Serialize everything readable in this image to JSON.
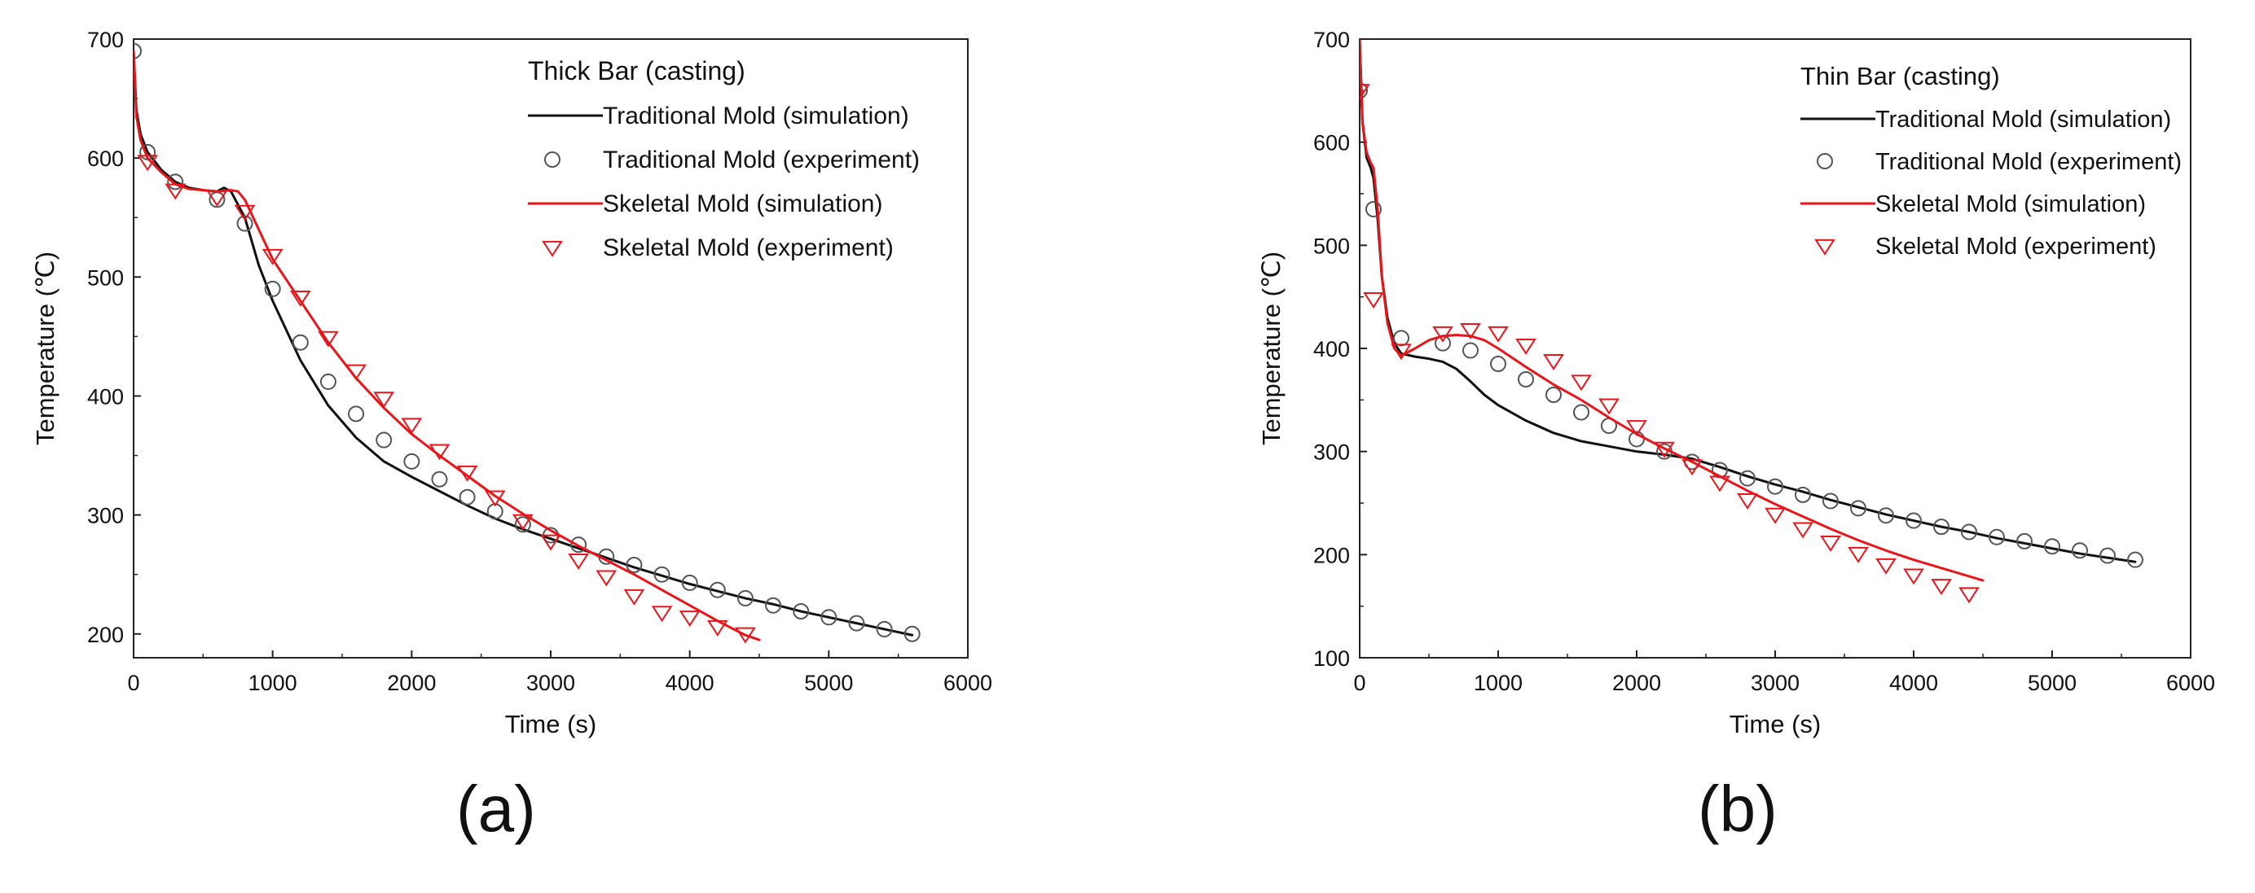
{
  "chart_data": [
    {
      "type": "line",
      "panel_label": "(a)",
      "title": "Thick Bar (casting)",
      "xlabel": "Time (s)",
      "ylabel": "Temperature (℃)",
      "xlim": [
        0,
        6000
      ],
      "ylim": [
        180,
        700
      ],
      "xticks": [
        0,
        1000,
        2000,
        3000,
        4000,
        5000,
        6000
      ],
      "yticks": [
        200,
        300,
        400,
        500,
        600,
        700
      ],
      "grid": false,
      "legend_position": "top-right",
      "series": [
        {
          "name": "Traditional Mold (simulation)",
          "kind": "line",
          "color": "#111111",
          "x": [
            0,
            20,
            50,
            100,
            200,
            300,
            400,
            500,
            600,
            650,
            700,
            800,
            900,
            1000,
            1200,
            1400,
            1600,
            1800,
            2000,
            2200,
            2400,
            2600,
            2800,
            3000,
            3200,
            3400,
            3600,
            3800,
            4000,
            4200,
            4400,
            4600,
            4800,
            5000,
            5200,
            5400,
            5600
          ],
          "y": [
            690,
            640,
            620,
            605,
            590,
            580,
            575,
            573,
            572,
            575,
            572,
            550,
            510,
            480,
            430,
            392,
            365,
            345,
            332,
            320,
            308,
            297,
            288,
            280,
            272,
            264,
            256,
            249,
            242,
            236,
            230,
            225,
            219,
            214,
            209,
            204,
            199
          ]
        },
        {
          "name": "Traditional Mold (experiment)",
          "kind": "scatter",
          "marker": "circle",
          "color": "#555555",
          "x": [
            0,
            100,
            300,
            600,
            800,
            1000,
            1200,
            1400,
            1600,
            1800,
            2000,
            2200,
            2400,
            2600,
            2800,
            3000,
            3200,
            3400,
            3600,
            3800,
            4000,
            4200,
            4400,
            4600,
            4800,
            5000,
            5200,
            5400,
            5600
          ],
          "y": [
            690,
            605,
            580,
            565,
            545,
            490,
            445,
            412,
            385,
            363,
            345,
            330,
            315,
            303,
            292,
            283,
            275,
            265,
            258,
            250,
            243,
            237,
            230,
            224,
            219,
            214,
            209,
            204,
            200
          ]
        },
        {
          "name": "Skeletal Mold (simulation)",
          "kind": "line",
          "color": "#e8161b",
          "x": [
            0,
            20,
            50,
            100,
            200,
            300,
            400,
            500,
            600,
            700,
            750,
            800,
            900,
            1000,
            1200,
            1400,
            1600,
            1800,
            2000,
            2200,
            2400,
            2600,
            2800,
            3000,
            3200,
            3400,
            3600,
            3800,
            4000,
            4200,
            4400,
            4500
          ],
          "y": [
            690,
            635,
            615,
            600,
            588,
            578,
            574,
            573,
            572,
            573,
            572,
            565,
            540,
            515,
            480,
            445,
            415,
            390,
            368,
            350,
            333,
            316,
            301,
            287,
            274,
            262,
            250,
            237,
            224,
            211,
            199,
            195
          ]
        },
        {
          "name": "Skeletal Mold (experiment)",
          "kind": "scatter",
          "marker": "triangle-down",
          "color": "#e8161b",
          "x": [
            100,
            300,
            600,
            800,
            1000,
            1200,
            1400,
            1600,
            1800,
            2000,
            2200,
            2400,
            2600,
            2800,
            3000,
            3200,
            3400,
            3600,
            3800,
            4000,
            4200,
            4400
          ],
          "y": [
            597,
            573,
            567,
            555,
            518,
            483,
            449,
            421,
            398,
            376,
            354,
            336,
            315,
            295,
            278,
            262,
            248,
            232,
            218,
            214,
            206,
            200
          ]
        }
      ]
    },
    {
      "type": "line",
      "panel_label": "(b)",
      "title": "Thin Bar (casting)",
      "xlabel": "Time (s)",
      "ylabel": "Temperature (℃)",
      "xlim": [
        0,
        6000
      ],
      "ylim": [
        100,
        700
      ],
      "xticks": [
        0,
        1000,
        2000,
        3000,
        4000,
        5000,
        6000
      ],
      "yticks": [
        100,
        200,
        300,
        400,
        500,
        600,
        700
      ],
      "grid": false,
      "legend_position": "top-right",
      "series": [
        {
          "name": "Traditional Mold (simulation)",
          "kind": "line",
          "color": "#111111",
          "x": [
            0,
            20,
            50,
            80,
            100,
            130,
            160,
            200,
            250,
            300,
            400,
            500,
            600,
            700,
            800,
            900,
            1000,
            1200,
            1400,
            1600,
            1800,
            2000,
            2200,
            2400,
            2600,
            2800,
            3000,
            3200,
            3400,
            3600,
            3800,
            4000,
            4200,
            4400,
            4600,
            4800,
            5000,
            5200,
            5400,
            5600
          ],
          "y": [
            700,
            620,
            585,
            575,
            565,
            525,
            470,
            430,
            405,
            395,
            392,
            390,
            387,
            380,
            368,
            355,
            345,
            330,
            318,
            310,
            305,
            300,
            297,
            293,
            285,
            276,
            268,
            261,
            253,
            246,
            239,
            233,
            227,
            222,
            216,
            211,
            206,
            201,
            197,
            193
          ]
        },
        {
          "name": "Traditional Mold (experiment)",
          "kind": "scatter",
          "marker": "circle",
          "color": "#555555",
          "x": [
            0,
            100,
            300,
            600,
            800,
            1000,
            1200,
            1400,
            1600,
            1800,
            2000,
            2200,
            2400,
            2600,
            2800,
            3000,
            3200,
            3400,
            3600,
            3800,
            4000,
            4200,
            4400,
            4600,
            4800,
            5000,
            5200,
            5400,
            5600
          ],
          "y": [
            650,
            535,
            410,
            405,
            398,
            385,
            370,
            355,
            338,
            325,
            312,
            300,
            290,
            282,
            274,
            266,
            258,
            252,
            245,
            238,
            233,
            227,
            222,
            217,
            213,
            208,
            204,
            199,
            195
          ]
        },
        {
          "name": "Skeletal Mold (simulation)",
          "kind": "line",
          "color": "#e8161b",
          "x": [
            0,
            20,
            50,
            80,
            100,
            130,
            160,
            200,
            250,
            300,
            400,
            500,
            600,
            700,
            800,
            900,
            1000,
            1200,
            1400,
            1600,
            1800,
            2000,
            2200,
            2400,
            2600,
            2800,
            3000,
            3200,
            3400,
            3600,
            3800,
            4000,
            4200,
            4400,
            4500
          ],
          "y": [
            700,
            620,
            590,
            580,
            575,
            535,
            470,
            425,
            400,
            393,
            400,
            408,
            412,
            413,
            412,
            408,
            400,
            382,
            365,
            350,
            333,
            317,
            303,
            290,
            276,
            262,
            249,
            237,
            225,
            214,
            204,
            195,
            187,
            179,
            175
          ]
        },
        {
          "name": "Skeletal Mold (experiment)",
          "kind": "scatter",
          "marker": "triangle-down",
          "color": "#e8161b",
          "x": [
            0,
            100,
            300,
            600,
            800,
            1000,
            1200,
            1400,
            1600,
            1800,
            2000,
            2200,
            2400,
            2600,
            2800,
            3000,
            3200,
            3400,
            3600,
            3800,
            4000,
            4200,
            4400
          ],
          "y": [
            650,
            448,
            398,
            415,
            418,
            415,
            403,
            388,
            368,
            345,
            324,
            303,
            286,
            270,
            253,
            239,
            225,
            212,
            201,
            190,
            180,
            170,
            162
          ]
        }
      ]
    }
  ]
}
